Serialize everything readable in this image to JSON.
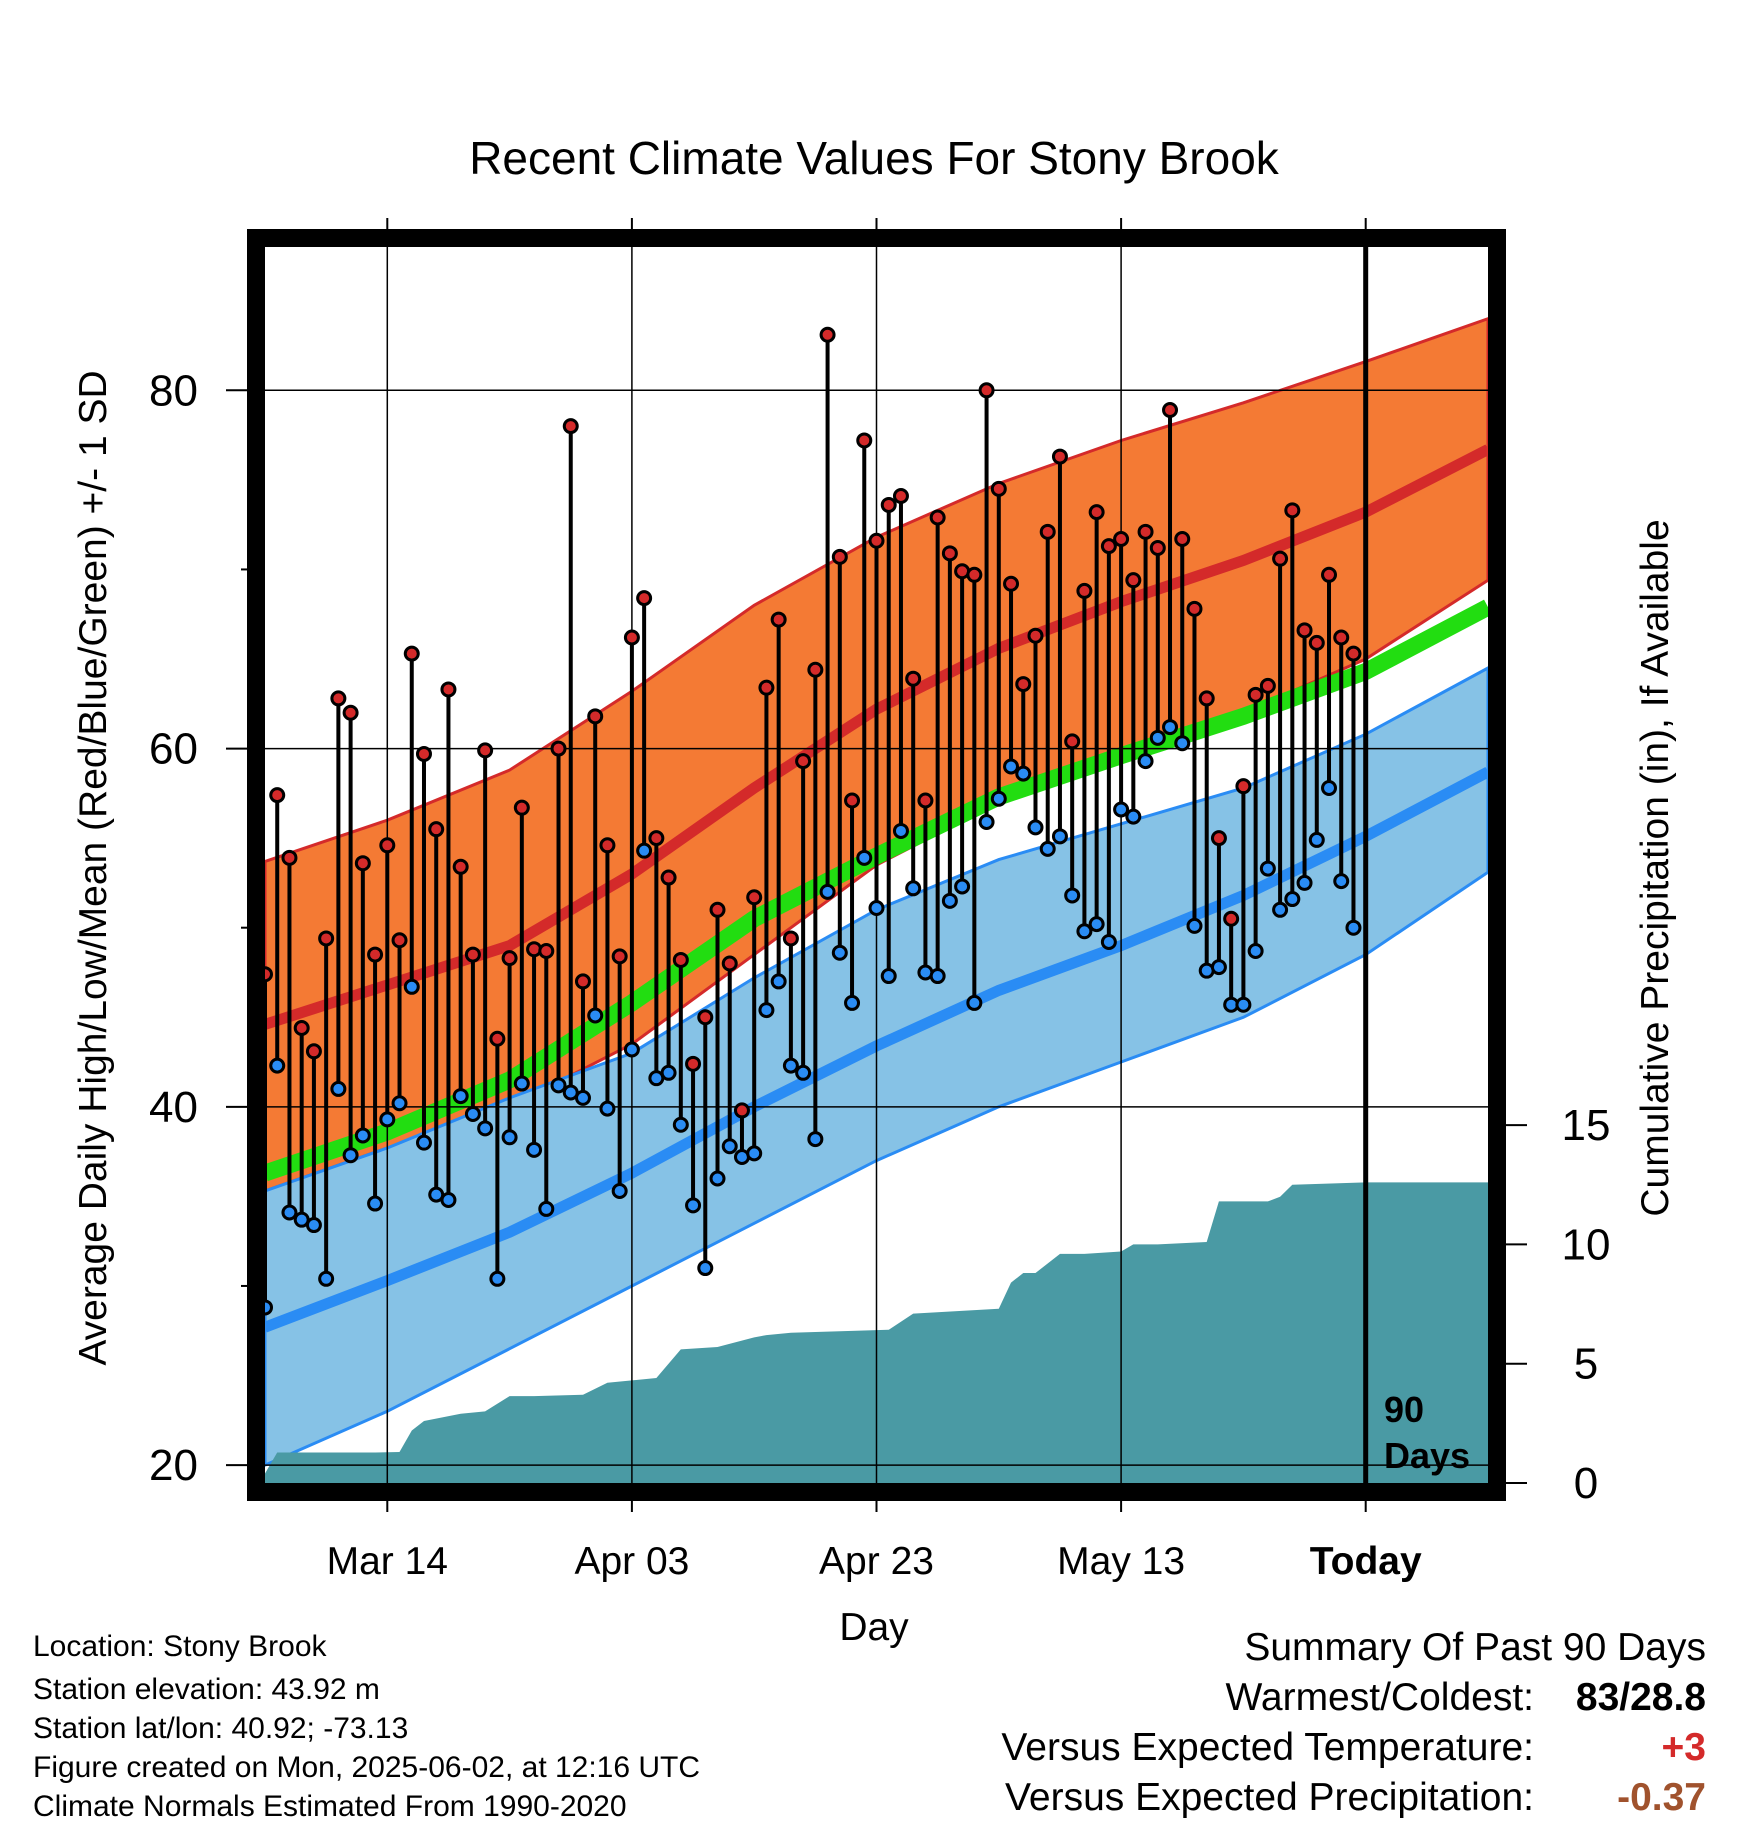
{
  "colors": {
    "high_band": "#f47a34",
    "mean_high": "#d42a2a",
    "low_band": "#86c2e6",
    "mean_low": "#2a8cf4",
    "mean_line": "#22dd11",
    "precip": "#4a9aa4",
    "high_dot": "#d42a2a",
    "low_dot": "#2a8cf4",
    "warm_value": "#d42a2a",
    "precip_value": "#a0522d"
  },
  "info": {
    "location": "Location: Stony Brook",
    "elevation": "Station elevation: 43.92 m",
    "latlon": "Station lat/lon: 40.92; -73.13",
    "created": "Figure created on Mon, 2025-06-02, at 12:16 UTC",
    "normals": "Climate Normals Estimated From 1990-2020"
  },
  "summary": {
    "title": "Summary Of Past 90 Days",
    "warm_cold_label": "Warmest/Coldest:",
    "warm_cold_value": "83/28.8",
    "temp_label": "Versus Expected Temperature:",
    "temp_value": "+3",
    "precip_label": "Versus Expected Precipitation:",
    "precip_value": "-0.37"
  },
  "chart_data": {
    "type": "line",
    "title": "Recent Climate Values For Stony Brook",
    "xlabel": "Day",
    "ylabel": "Average Daily High/Low/Mean (Red/Blue/Green) +/- 1 SD",
    "y2label": "Cumulative Precipitation (in), If Available",
    "x_start": "Mar 04",
    "x_end": "Jun 12",
    "today_label": "Today",
    "today_date": "Jun 02",
    "window_label_1": "90",
    "window_label_2": "Days",
    "xticks": [
      {
        "date": "Mar 14",
        "label": "Mar 14"
      },
      {
        "date": "Apr 03",
        "label": "Apr 03"
      },
      {
        "date": "Apr 23",
        "label": "Apr 23"
      },
      {
        "date": "May 13",
        "label": "May 13"
      },
      {
        "date": "Jun 02",
        "label": "Today"
      }
    ],
    "ylim": [
      19,
      88
    ],
    "yticks": [
      20,
      40,
      60,
      80
    ],
    "y2lim": [
      0,
      51.8
    ],
    "y2ticks": [
      0,
      5,
      10,
      15
    ],
    "grid": true,
    "normals": {
      "dates": [
        "Mar 04",
        "Mar 14",
        "Mar 24",
        "Apr 03",
        "Apr 13",
        "Apr 23",
        "May 03",
        "May 13",
        "May 23",
        "Jun 02",
        "Jun 12"
      ],
      "high_plus_sd": [
        53.7,
        56.0,
        58.8,
        63.2,
        68.0,
        71.8,
        74.8,
        77.2,
        79.3,
        81.6,
        84.0
      ],
      "high_mean": [
        44.6,
        46.8,
        49.0,
        53.0,
        57.8,
        62.2,
        65.6,
        68.2,
        70.5,
        73.2,
        76.7
      ],
      "high_minus_sd": [
        35.3,
        37.7,
        40.0,
        43.5,
        48.5,
        53.5,
        57.0,
        60.0,
        62.0,
        65.0,
        69.4
      ],
      "mean": [
        36.3,
        38.6,
        41.5,
        45.8,
        50.5,
        54.0,
        57.3,
        59.6,
        61.8,
        64.3,
        67.9
      ],
      "low_plus_sd": [
        35.3,
        37.7,
        40.5,
        43.0,
        47.2,
        51.0,
        53.8,
        55.8,
        57.8,
        60.8,
        64.5
      ],
      "low_mean": [
        27.7,
        30.3,
        33.0,
        36.3,
        40.0,
        43.4,
        46.5,
        49.0,
        51.8,
        55.1,
        58.7
      ],
      "low_minus_sd": [
        20.0,
        23.0,
        26.5,
        30.0,
        33.5,
        37.0,
        40.0,
        42.5,
        45.0,
        48.5,
        53.1
      ]
    },
    "series": [
      {
        "name": "High",
        "dates": [
          "Mar 04",
          "Mar 05",
          "Mar 06",
          "Mar 07",
          "Mar 08",
          "Mar 09",
          "Mar 10",
          "Mar 11",
          "Mar 12",
          "Mar 13",
          "Mar 14",
          "Mar 15",
          "Mar 16",
          "Mar 17",
          "Mar 18",
          "Mar 19",
          "Mar 20",
          "Mar 21",
          "Mar 22",
          "Mar 23",
          "Mar 24",
          "Mar 25",
          "Mar 26",
          "Mar 27",
          "Mar 28",
          "Mar 29",
          "Mar 30",
          "Mar 31",
          "Apr 01",
          "Apr 02",
          "Apr 03",
          "Apr 04",
          "Apr 05",
          "Apr 06",
          "Apr 07",
          "Apr 08",
          "Apr 09",
          "Apr 10",
          "Apr 11",
          "Apr 12",
          "Apr 13",
          "Apr 14",
          "Apr 15",
          "Apr 16",
          "Apr 17",
          "Apr 18",
          "Apr 19",
          "Apr 20",
          "Apr 21",
          "Apr 22",
          "Apr 23",
          "Apr 24",
          "Apr 25",
          "Apr 26",
          "Apr 27",
          "Apr 28",
          "Apr 29",
          "Apr 30",
          "May 01",
          "May 02",
          "May 03",
          "May 04",
          "May 05",
          "May 06",
          "May 07",
          "May 08",
          "May 09",
          "May 10",
          "May 11",
          "May 12",
          "May 13",
          "May 14",
          "May 15",
          "May 16",
          "May 17",
          "May 18",
          "May 19",
          "May 20",
          "May 21",
          "May 22",
          "May 23",
          "May 24",
          "May 25",
          "May 26",
          "May 27",
          "May 28",
          "May 29",
          "May 30",
          "May 31",
          "Jun 01"
        ],
        "values": [
          47.4,
          57.4,
          53.9,
          44.4,
          43.1,
          49.4,
          62.8,
          62.0,
          53.6,
          48.5,
          54.6,
          49.3,
          65.3,
          59.7,
          55.5,
          63.3,
          53.4,
          48.5,
          59.9,
          43.8,
          48.3,
          56.7,
          48.8,
          48.7,
          60.0,
          78.0,
          47.0,
          61.8,
          54.6,
          48.4,
          66.2,
          68.4,
          55.0,
          52.8,
          48.2,
          42.4,
          45.0,
          51.0,
          48.0,
          39.8,
          51.7,
          63.4,
          67.2,
          49.4,
          59.3,
          64.4,
          83.1,
          70.7,
          57.1,
          77.2,
          71.6,
          73.6,
          74.1,
          63.9,
          57.1,
          72.9,
          70.9,
          69.9,
          69.7,
          80.0,
          74.5,
          69.2,
          63.6,
          66.3,
          72.1,
          76.3,
          60.4,
          68.8,
          73.2,
          71.3,
          71.7,
          69.4,
          72.1,
          71.2,
          78.9,
          71.7,
          67.8,
          62.8,
          55.0,
          50.5,
          57.9,
          63.0,
          63.5,
          70.6,
          73.3,
          66.6,
          65.9,
          69.7,
          66.2,
          65.3
        ]
      },
      {
        "name": "Low",
        "dates": [
          "Mar 04",
          "Mar 05",
          "Mar 06",
          "Mar 07",
          "Mar 08",
          "Mar 09",
          "Mar 10",
          "Mar 11",
          "Mar 12",
          "Mar 13",
          "Mar 14",
          "Mar 15",
          "Mar 16",
          "Mar 17",
          "Mar 18",
          "Mar 19",
          "Mar 20",
          "Mar 21",
          "Mar 22",
          "Mar 23",
          "Mar 24",
          "Mar 25",
          "Mar 26",
          "Mar 27",
          "Mar 28",
          "Mar 29",
          "Mar 30",
          "Mar 31",
          "Apr 01",
          "Apr 02",
          "Apr 03",
          "Apr 04",
          "Apr 05",
          "Apr 06",
          "Apr 07",
          "Apr 08",
          "Apr 09",
          "Apr 10",
          "Apr 11",
          "Apr 12",
          "Apr 13",
          "Apr 14",
          "Apr 15",
          "Apr 16",
          "Apr 17",
          "Apr 18",
          "Apr 19",
          "Apr 20",
          "Apr 21",
          "Apr 22",
          "Apr 23",
          "Apr 24",
          "Apr 25",
          "Apr 26",
          "Apr 27",
          "Apr 28",
          "Apr 29",
          "Apr 30",
          "May 01",
          "May 02",
          "May 03",
          "May 04",
          "May 05",
          "May 06",
          "May 07",
          "May 08",
          "May 09",
          "May 10",
          "May 11",
          "May 12",
          "May 13",
          "May 14",
          "May 15",
          "May 16",
          "May 17",
          "May 18",
          "May 19",
          "May 20",
          "May 21",
          "May 22",
          "May 23",
          "May 24",
          "May 25",
          "May 26",
          "May 27",
          "May 28",
          "May 29",
          "May 30",
          "May 31",
          "Jun 01"
        ],
        "values": [
          28.8,
          42.3,
          34.1,
          33.7,
          33.4,
          30.4,
          41.0,
          37.3,
          38.4,
          34.6,
          39.3,
          40.2,
          46.7,
          38.0,
          35.1,
          34.8,
          40.6,
          39.6,
          38.8,
          30.4,
          38.3,
          41.3,
          37.6,
          34.3,
          41.2,
          40.8,
          40.5,
          45.1,
          39.9,
          35.3,
          43.2,
          54.3,
          41.6,
          41.9,
          39.0,
          34.5,
          31.0,
          36.0,
          37.8,
          37.2,
          37.4,
          45.4,
          47.0,
          42.3,
          41.9,
          38.2,
          52.0,
          48.6,
          45.8,
          53.9,
          51.1,
          47.3,
          55.4,
          52.2,
          47.5,
          47.3,
          51.5,
          52.3,
          45.8,
          55.9,
          57.2,
          59.0,
          58.6,
          55.6,
          54.4,
          55.1,
          51.8,
          49.8,
          50.2,
          49.2,
          56.6,
          56.2,
          59.3,
          60.6,
          61.2,
          60.3,
          50.1,
          47.6,
          47.8,
          45.7,
          45.7,
          48.7,
          53.3,
          51.0,
          51.6,
          52.5,
          54.9,
          57.8,
          52.6,
          50.0
        ]
      }
    ],
    "precip": {
      "dates": [
        "Mar 04",
        "Mar 05",
        "Mar 10",
        "Mar 13",
        "Mar 15",
        "Mar 16",
        "Mar 17",
        "Mar 20",
        "Mar 22",
        "Mar 24",
        "Mar 26",
        "Mar 30",
        "Apr 01",
        "Apr 03",
        "Apr 05",
        "Apr 07",
        "Apr 10",
        "Apr 13",
        "Apr 14",
        "Apr 16",
        "Apr 24",
        "Apr 26",
        "May 03",
        "May 04",
        "May 05",
        "May 06",
        "May 08",
        "May 10",
        "May 13",
        "May 14",
        "May 16",
        "May 20",
        "May 21",
        "May 25",
        "May 26",
        "May 27",
        "Jun 02",
        "Jun 12"
      ],
      "values": [
        0.4,
        1.28,
        1.28,
        1.28,
        1.3,
        2.2,
        2.6,
        2.9,
        3.0,
        3.64,
        3.64,
        3.7,
        4.2,
        4.3,
        4.4,
        5.6,
        5.7,
        6.1,
        6.2,
        6.3,
        6.42,
        7.1,
        7.3,
        8.4,
        8.8,
        8.8,
        9.6,
        9.6,
        9.7,
        10.0,
        10.0,
        10.1,
        11.8,
        11.8,
        12.0,
        12.5,
        12.6,
        12.6
      ]
    }
  }
}
